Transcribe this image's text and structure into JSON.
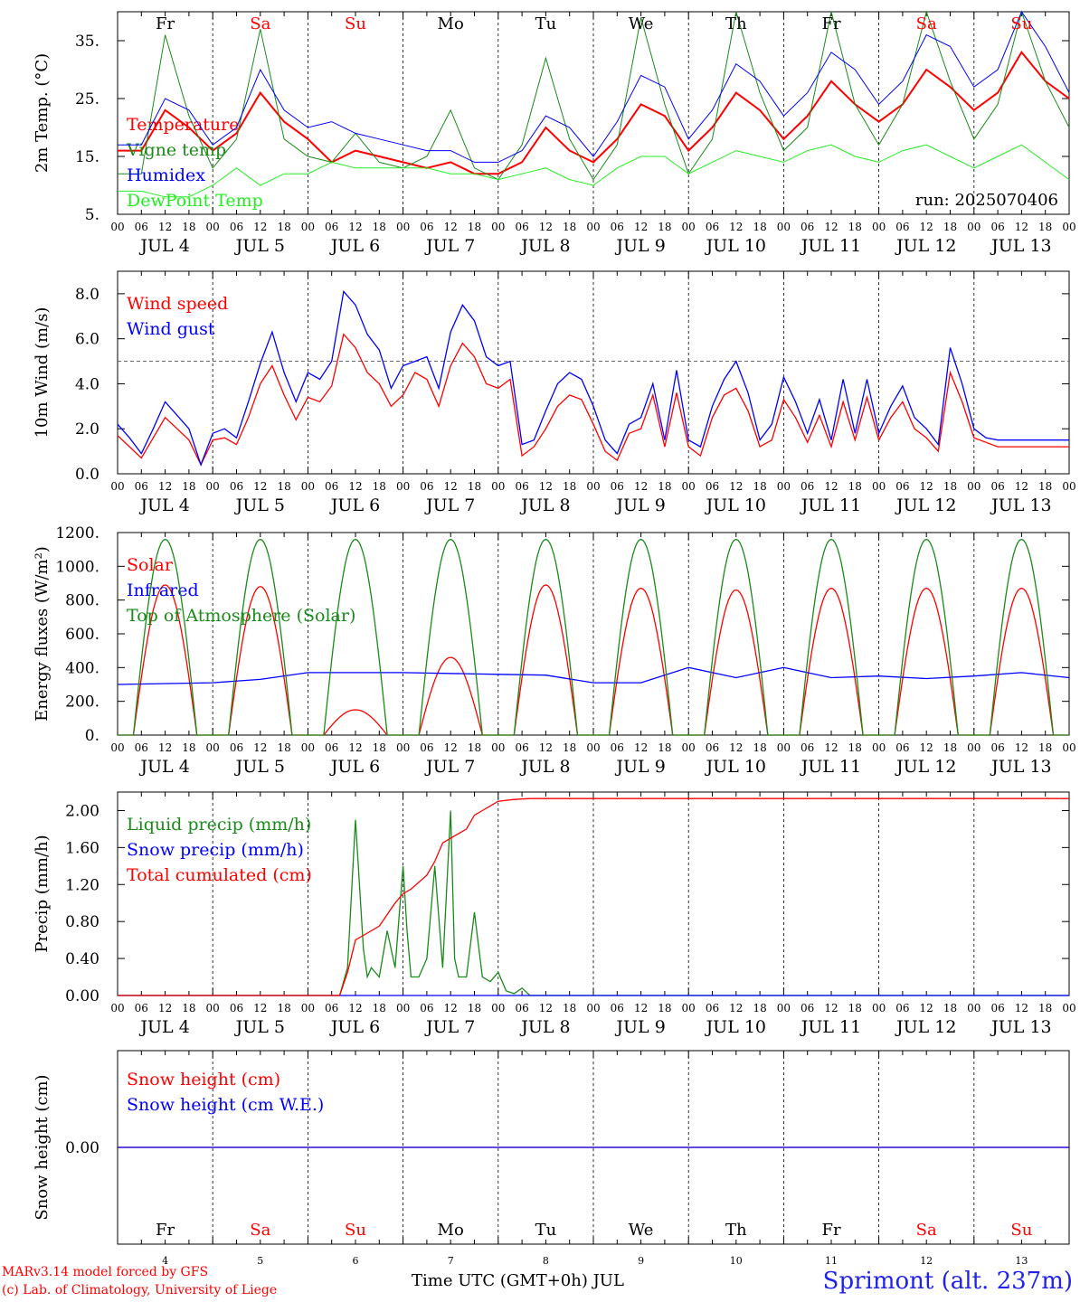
{
  "run_label": "run: 2025070406",
  "day_names": [
    "Fr",
    "Sa",
    "Su",
    "Mo",
    "Tu",
    "We",
    "Th",
    "Fr",
    "Sa",
    "Su"
  ],
  "day_numbers": [
    "4",
    "5",
    "6",
    "7",
    "8",
    "9",
    "10",
    "11",
    "12",
    "13"
  ],
  "weekend_color": "#ff0000",
  "weekday_color": "#000000",
  "weekend_flags": [
    false,
    true,
    true,
    false,
    false,
    false,
    false,
    false,
    true,
    true
  ],
  "month_label": "JUL",
  "hour_ticks": [
    "00",
    "06",
    "12",
    "18"
  ],
  "footer": {
    "model": "MARv3.14 model forced by GFS",
    "lab": "(c) Lab. of Climatology, University of Liege",
    "xlabel": "Time UTC (GMT+0h) JUL",
    "station": "Sprimont (alt. 237m)"
  },
  "chart_data": [
    {
      "type": "line",
      "id": "temp",
      "ylabel": "2m Temp. (°C)",
      "ylim": [
        5,
        40
      ],
      "yticks": [
        "5.",
        "15.",
        "25.",
        "35."
      ],
      "ytick_values": [
        5,
        15,
        25,
        35
      ],
      "x_unit": "hours since JUL 4 00 UTC",
      "series": [
        {
          "name": "Temperature",
          "color": "#ff0000",
          "width": 2,
          "x": [
            0,
            6,
            12,
            18,
            24,
            30,
            36,
            42,
            48,
            54,
            60,
            66,
            72,
            78,
            84,
            90,
            96,
            102,
            108,
            114,
            120,
            126,
            132,
            138,
            144,
            150,
            156,
            162,
            168,
            174,
            180,
            186,
            192,
            198,
            204,
            210,
            216,
            222,
            228,
            234,
            240
          ],
          "y": [
            16,
            16,
            23,
            20,
            16,
            19,
            26,
            21,
            18,
            14,
            16,
            15,
            14,
            13,
            14,
            12,
            12,
            14,
            20,
            16,
            14,
            18,
            24,
            22,
            16,
            20,
            26,
            23,
            18,
            22,
            28,
            24,
            21,
            24,
            30,
            27,
            23,
            26,
            33,
            28,
            25
          ]
        },
        {
          "name": "Vigne temp",
          "color": "#1a8a1a",
          "width": 1,
          "x": [
            0,
            6,
            12,
            18,
            24,
            30,
            36,
            42,
            48,
            54,
            60,
            66,
            72,
            78,
            84,
            90,
            96,
            102,
            108,
            114,
            120,
            126,
            132,
            138,
            144,
            150,
            156,
            162,
            168,
            174,
            180,
            186,
            192,
            198,
            204,
            210,
            216,
            222,
            228,
            234,
            240
          ],
          "y": [
            12,
            12,
            36,
            22,
            13,
            18,
            37,
            18,
            15,
            14,
            19,
            14,
            13,
            15,
            23,
            13,
            11,
            17,
            32,
            18,
            11,
            17,
            39,
            24,
            12,
            18,
            40,
            26,
            16,
            20,
            40,
            24,
            17,
            24,
            41,
            28,
            18,
            24,
            41,
            28,
            20
          ]
        },
        {
          "name": "Humidex",
          "color": "#0000ff",
          "width": 1,
          "x": [
            0,
            6,
            12,
            18,
            24,
            30,
            36,
            42,
            48,
            54,
            60,
            66,
            72,
            78,
            84,
            90,
            96,
            102,
            108,
            114,
            120,
            126,
            132,
            138,
            144,
            150,
            156,
            162,
            168,
            174,
            180,
            186,
            192,
            198,
            204,
            210,
            216,
            222,
            228,
            234,
            240
          ],
          "y": [
            17,
            17,
            25,
            23,
            17,
            20,
            30,
            23,
            20,
            21,
            19,
            18,
            17,
            16,
            16,
            14,
            14,
            16,
            22,
            20,
            15,
            21,
            29,
            27,
            18,
            23,
            31,
            28,
            22,
            26,
            33,
            30,
            24,
            28,
            36,
            34,
            27,
            30,
            40,
            34,
            26
          ]
        },
        {
          "name": "DewPoint Temp",
          "color": "#22ee22",
          "width": 1,
          "x": [
            0,
            6,
            12,
            18,
            24,
            30,
            36,
            42,
            48,
            54,
            60,
            66,
            72,
            78,
            84,
            90,
            96,
            102,
            108,
            114,
            120,
            126,
            132,
            138,
            144,
            150,
            156,
            162,
            168,
            174,
            180,
            186,
            192,
            198,
            204,
            210,
            216,
            222,
            228,
            234,
            240
          ],
          "y": [
            9,
            9,
            8,
            8,
            10,
            13,
            10,
            12,
            12,
            14,
            13,
            13,
            13,
            13,
            12,
            12,
            11,
            12,
            13,
            11,
            10,
            13,
            15,
            15,
            12,
            14,
            16,
            15,
            14,
            16,
            17,
            15,
            14,
            16,
            17,
            15,
            13,
            15,
            17,
            14,
            11
          ]
        }
      ]
    },
    {
      "type": "line",
      "id": "wind",
      "ylabel": "10m Wind (m/s)",
      "ylim": [
        0,
        9
      ],
      "yticks": [
        "0.0",
        "2.0",
        "4.0",
        "6.0",
        "8.0"
      ],
      "ytick_values": [
        0,
        2,
        4,
        6,
        8
      ],
      "hline": 5,
      "series": [
        {
          "name": "Wind speed",
          "color": "#ff0000",
          "x": [
            0,
            3,
            6,
            9,
            12,
            15,
            18,
            21,
            24,
            27,
            30,
            33,
            36,
            39,
            42,
            45,
            48,
            51,
            54,
            57,
            60,
            63,
            66,
            69,
            72,
            75,
            78,
            81,
            84,
            87,
            90,
            93,
            96,
            99,
            102,
            105,
            108,
            111,
            114,
            117,
            120,
            123,
            126,
            129,
            132,
            135,
            138,
            141,
            144,
            147,
            150,
            153,
            156,
            159,
            162,
            165,
            168,
            171,
            174,
            177,
            180,
            183,
            186,
            189,
            192,
            195,
            198,
            201,
            204,
            207,
            210,
            213,
            216,
            219,
            222,
            225,
            228,
            231,
            234,
            237,
            240
          ],
          "y": [
            1.7,
            1.2,
            0.7,
            1.6,
            2.5,
            2.0,
            1.5,
            0.4,
            1.5,
            1.6,
            1.3,
            2.5,
            4.0,
            4.8,
            3.5,
            2.4,
            3.4,
            3.2,
            3.9,
            6.2,
            5.6,
            4.5,
            4.0,
            3.0,
            3.5,
            4.5,
            4.2,
            3.0,
            4.8,
            5.8,
            5.2,
            4.0,
            3.8,
            4.2,
            0.8,
            1.2,
            2.0,
            3.0,
            3.5,
            3.3,
            2.2,
            1.0,
            0.6,
            1.8,
            2.0,
            3.5,
            1.2,
            3.6,
            1.2,
            0.8,
            2.5,
            3.5,
            3.8,
            2.8,
            1.2,
            1.5,
            3.3,
            2.5,
            1.4,
            2.6,
            1.2,
            3.2,
            1.5,
            3.4,
            1.5,
            2.5,
            3.2,
            2.0,
            1.6,
            1.0,
            4.5,
            3.2,
            1.6,
            1.4,
            1.2,
            1.2,
            1.2,
            1.2,
            1.2,
            1.2,
            1.2
          ]
        },
        {
          "name": "Wind gust",
          "color": "#0000ff",
          "x": [
            0,
            3,
            6,
            9,
            12,
            15,
            18,
            21,
            24,
            27,
            30,
            33,
            36,
            39,
            42,
            45,
            48,
            51,
            54,
            57,
            60,
            63,
            66,
            69,
            72,
            75,
            78,
            81,
            84,
            87,
            90,
            93,
            96,
            99,
            102,
            105,
            108,
            111,
            114,
            117,
            120,
            123,
            126,
            129,
            132,
            135,
            138,
            141,
            144,
            147,
            150,
            153,
            156,
            159,
            162,
            165,
            168,
            171,
            174,
            177,
            180,
            183,
            186,
            189,
            192,
            195,
            198,
            201,
            204,
            207,
            210,
            213,
            216,
            219,
            222,
            225,
            228,
            231,
            234,
            237,
            240
          ],
          "y": [
            2.2,
            1.6,
            0.9,
            2.0,
            3.2,
            2.6,
            2.0,
            0.4,
            1.8,
            2.0,
            1.6,
            3.2,
            4.9,
            6.3,
            4.5,
            3.2,
            4.5,
            4.2,
            5.0,
            8.1,
            7.5,
            6.2,
            5.5,
            3.8,
            4.8,
            5.0,
            5.2,
            3.8,
            6.3,
            7.5,
            6.8,
            5.2,
            4.8,
            5.0,
            1.3,
            1.5,
            2.8,
            4.0,
            4.5,
            4.2,
            3.0,
            1.5,
            0.9,
            2.2,
            2.5,
            4.0,
            1.5,
            4.6,
            1.5,
            1.2,
            3.0,
            4.2,
            5.0,
            3.6,
            1.5,
            2.2,
            4.3,
            3.2,
            1.8,
            3.3,
            1.5,
            4.2,
            1.8,
            4.2,
            1.8,
            3.0,
            3.9,
            2.5,
            2.0,
            1.3,
            5.6,
            4.0,
            2.0,
            1.6,
            1.5,
            1.5,
            1.5,
            1.5,
            1.5,
            1.5,
            1.5
          ]
        }
      ]
    },
    {
      "type": "line",
      "id": "energy",
      "ylabel": "Energy fluxes (W/m²)",
      "ylim": [
        0,
        1200
      ],
      "yticks": [
        "0.",
        "200.",
        "400.",
        "600.",
        "800.",
        "1000.",
        "1200."
      ],
      "ytick_values": [
        0,
        200,
        400,
        600,
        800,
        1000,
        1200
      ],
      "day_peaks": {
        "toa": [
          1160,
          1160,
          1160,
          1160,
          1160,
          1160,
          1160,
          1160,
          1160,
          1160
        ],
        "solar": [
          890,
          880,
          150,
          460,
          890,
          870,
          860,
          870,
          870,
          870
        ]
      },
      "series": [
        {
          "name": "Solar",
          "color": "#ff0000"
        },
        {
          "name": "Infrared",
          "color": "#0000ff",
          "x": [
            0,
            24,
            36,
            48,
            60,
            72,
            96,
            108,
            120,
            132,
            144,
            156,
            168,
            180,
            192,
            204,
            216,
            228,
            240
          ],
          "y": [
            300,
            310,
            330,
            370,
            370,
            370,
            360,
            355,
            310,
            310,
            400,
            340,
            400,
            340,
            350,
            335,
            350,
            370,
            340
          ]
        },
        {
          "name": "Top of Atmosphere (Solar)",
          "color": "#1a8a1a"
        }
      ]
    },
    {
      "type": "line",
      "id": "precip",
      "ylabel": "Precip (mm/h)",
      "ylim": [
        0,
        2.2
      ],
      "yticks": [
        "0.00",
        "0.40",
        "0.80",
        "1.20",
        "1.60",
        "2.00"
      ],
      "ytick_values": [
        0,
        0.4,
        0.8,
        1.2,
        1.6,
        2.0
      ],
      "series": [
        {
          "name": "Liquid precip (mm/h)",
          "color": "#1a8a1a",
          "x": [
            0,
            56,
            58,
            60,
            62,
            63,
            64,
            66,
            68,
            70,
            72,
            73,
            74,
            76,
            78,
            80,
            82,
            84,
            85,
            86,
            88,
            90,
            92,
            94,
            96,
            98,
            100,
            102,
            104,
            240
          ],
          "y": [
            0,
            0,
            0.3,
            1.9,
            0.5,
            0.2,
            0.3,
            0.2,
            0.7,
            0.3,
            1.4,
            0.7,
            0.2,
            0.2,
            0.4,
            1.4,
            0.3,
            2.0,
            0.4,
            0.2,
            0.2,
            0.9,
            0.2,
            0.15,
            0.25,
            0.05,
            0.02,
            0.08,
            0,
            0
          ]
        },
        {
          "name": "Snow precip (mm/h)",
          "color": "#0000ff",
          "x": [
            0,
            240
          ],
          "y": [
            0,
            0
          ]
        },
        {
          "name": "Total cumulated (cm)",
          "color": "#ff0000",
          "x": [
            0,
            56,
            58,
            60,
            62,
            66,
            70,
            72,
            74,
            78,
            80,
            82,
            84,
            88,
            90,
            92,
            96,
            100,
            104,
            240
          ],
          "y": [
            0,
            0,
            0.25,
            0.6,
            0.65,
            0.75,
            1.0,
            1.1,
            1.15,
            1.3,
            1.45,
            1.65,
            1.7,
            1.8,
            1.95,
            2.0,
            2.1,
            2.12,
            2.13,
            2.13
          ]
        }
      ]
    },
    {
      "type": "line",
      "id": "snow",
      "ylabel": "Snow height (cm)",
      "ylim": [
        -1,
        1
      ],
      "yticks": [
        "0.00"
      ],
      "ytick_values": [
        0
      ],
      "series": [
        {
          "name": "Snow height (cm)",
          "color": "#ff0000",
          "x": [
            0,
            240
          ],
          "y": [
            0,
            0
          ]
        },
        {
          "name": "Snow height (cm W.E.)",
          "color": "#0000ff",
          "x": [
            0,
            240
          ],
          "y": [
            0,
            0
          ]
        }
      ]
    }
  ]
}
